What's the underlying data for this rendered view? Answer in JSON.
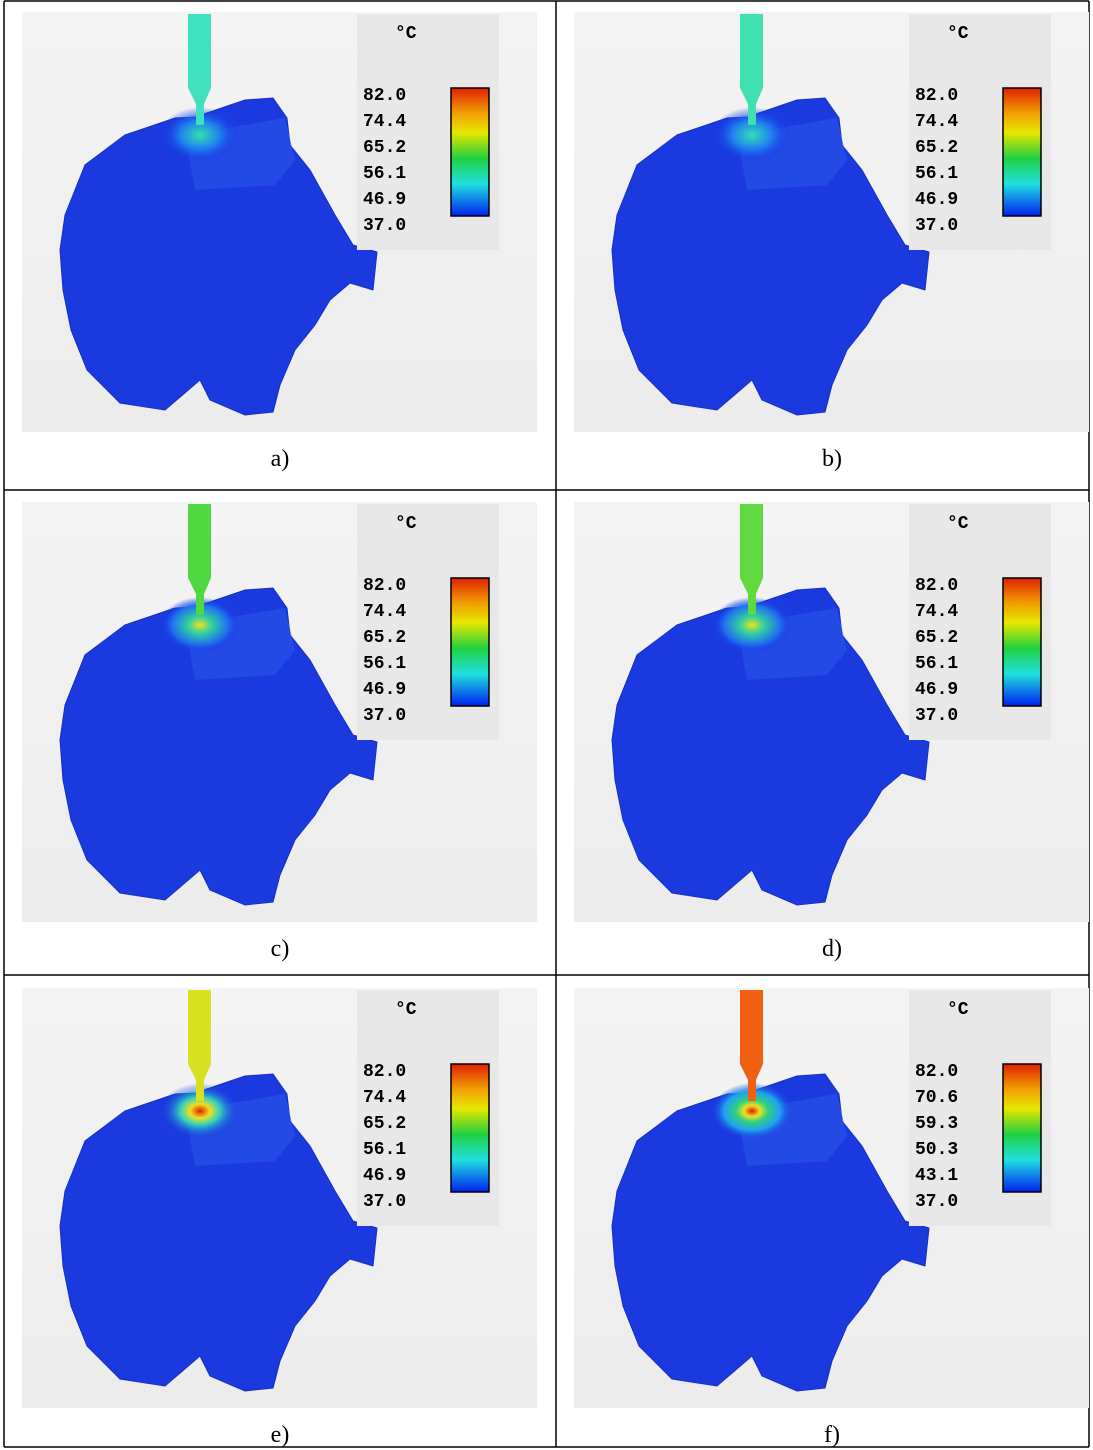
{
  "panels": [
    {
      "caption": "a)",
      "unit": "°C",
      "scale": [
        "82.0",
        "74.4",
        "65.2",
        "56.1",
        "46.9",
        "37.0"
      ]
    },
    {
      "caption": "b)",
      "unit": "°C",
      "scale": [
        "82.0",
        "74.4",
        "65.2",
        "56.1",
        "46.9",
        "37.0"
      ]
    },
    {
      "caption": "c)",
      "unit": "°C",
      "scale": [
        "82.0",
        "74.4",
        "65.2",
        "56.1",
        "46.9",
        "37.0"
      ]
    },
    {
      "caption": "d)",
      "unit": "°C",
      "scale": [
        "82.0",
        "74.4",
        "65.2",
        "56.1",
        "46.9",
        "37.0"
      ]
    },
    {
      "caption": "e)",
      "unit": "°C",
      "scale": [
        "82.0",
        "74.4",
        "65.2",
        "56.1",
        "46.9",
        "37.0"
      ]
    },
    {
      "caption": "f)",
      "unit": "°C",
      "scale": [
        "82.0",
        "70.6",
        "59.3",
        "50.3",
        "43.1",
        "37.0"
      ]
    }
  ]
}
